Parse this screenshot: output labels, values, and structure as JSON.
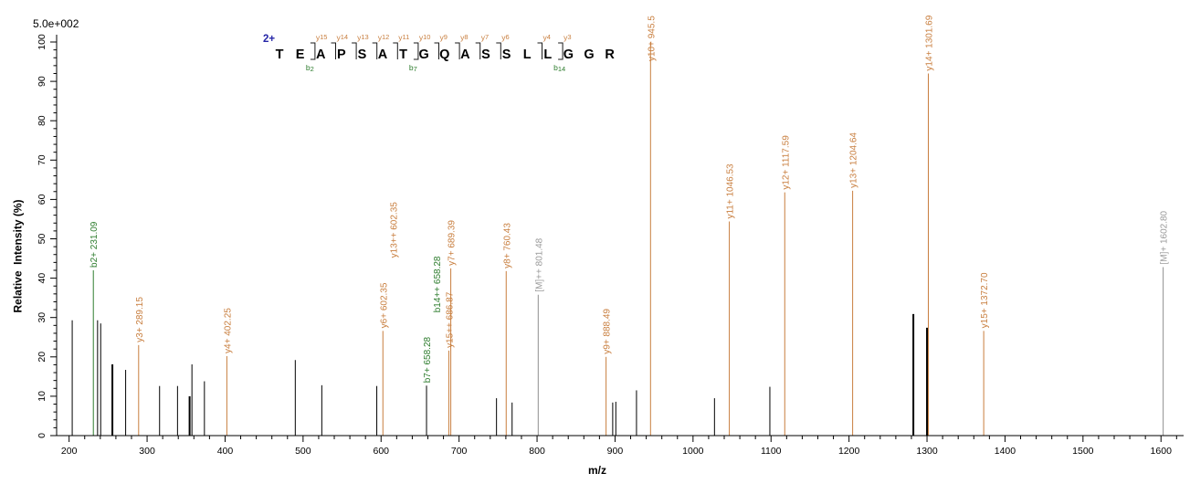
{
  "colors": {
    "y_ion": "#C87E3E",
    "b_ion": "#2E7D2E",
    "precursor_label": "#9A9A9A",
    "precursor_line": "#8F8F8F",
    "charge_label": "#2626A8",
    "unannotated_peak": "#000000",
    "axis": "#000000",
    "cleavage_mark": "#1A1A1A"
  },
  "peptide": {
    "charge": "2+",
    "sequence": "TEAPSATGQASSLLGGR",
    "cleavages": [
      {
        "after": 2,
        "y_label": "y",
        "y_num": "15",
        "b_label": "b",
        "b_num": "2"
      },
      {
        "after": 3,
        "y_label": "y",
        "y_num": "14"
      },
      {
        "after": 4,
        "y_label": "y",
        "y_num": "13"
      },
      {
        "after": 5,
        "y_label": "y",
        "y_num": "12"
      },
      {
        "after": 6,
        "y_label": "y",
        "y_num": "11"
      },
      {
        "after": 7,
        "y_label": "y",
        "y_num": "10",
        "b_label": "b",
        "b_num": "7"
      },
      {
        "after": 8,
        "y_label": "y",
        "y_num": "9"
      },
      {
        "after": 9,
        "y_label": "y",
        "y_num": "8"
      },
      {
        "after": 10,
        "y_label": "y",
        "y_num": "7"
      },
      {
        "after": 11,
        "y_label": "y",
        "y_num": "6"
      },
      {
        "after": 13,
        "y_label": "y",
        "y_num": "4"
      },
      {
        "after": 14,
        "y_label": "y",
        "y_num": "3",
        "b_label": "b",
        "b_num": "14"
      }
    ]
  },
  "chart_data": {
    "type": "bar",
    "subtype": "ms2-stick-spectrum",
    "scale_label": "5.0e+002",
    "xlabel": "m/z",
    "ylabel": "Relative  Intensity (%)",
    "xlim": [
      184,
      1629
    ],
    "ylim": [
      0,
      100
    ],
    "x_major_ticks": [
      200,
      300,
      400,
      500,
      600,
      700,
      800,
      900,
      1000,
      1100,
      1200,
      1300,
      1400,
      1500,
      1600
    ],
    "x_minor_step": 20,
    "y_major_step": 10,
    "y_minor_step": 2,
    "grid": false,
    "annotated_peaks": [
      {
        "mz": 231.09,
        "intensity": 42.0,
        "line": "b",
        "labels": [
          {
            "text": "b2+ 231.09",
            "ion": "b"
          }
        ]
      },
      {
        "mz": 289.15,
        "intensity": 23.0,
        "line": "y",
        "labels": [
          {
            "text": "y3+ 289.15",
            "ion": "y"
          }
        ]
      },
      {
        "mz": 402.25,
        "intensity": 20.2,
        "line": "y",
        "labels": [
          {
            "text": "y4+ 402.25",
            "ion": "y"
          }
        ]
      },
      {
        "mz": 602.35,
        "intensity": 26.6,
        "line": "y",
        "labels": [
          {
            "text": "y6+ 602.35",
            "ion": "y"
          },
          {
            "text": "y13++ 602.35",
            "ion": "y"
          }
        ]
      },
      {
        "mz": 658.28,
        "intensity": 12.7,
        "line": "black",
        "labels": [
          {
            "text": "b7+ 658.28",
            "ion": "b"
          },
          {
            "text": "b14++ 658.28",
            "ion": "b"
          }
        ]
      },
      {
        "mz": 686.87,
        "intensity": 21.6,
        "line": "y",
        "labels": [
          {
            "text": "y15++ 686.87",
            "ion": "y"
          }
        ]
      },
      {
        "mz": 689.39,
        "intensity": 42.5,
        "line": "y",
        "labels": [
          {
            "text": "y7+ 689.39",
            "ion": "y"
          }
        ]
      },
      {
        "mz": 760.43,
        "intensity": 41.8,
        "line": "y",
        "labels": [
          {
            "text": "y8+ 760.43",
            "ion": "y"
          }
        ]
      },
      {
        "mz": 801.48,
        "intensity": 35.8,
        "line": "M",
        "labels": [
          {
            "text": "[M]++ 801.48",
            "ion": "M"
          }
        ]
      },
      {
        "mz": 888.49,
        "intensity": 20.0,
        "line": "y",
        "labels": [
          {
            "text": "y9+ 888.49",
            "ion": "y"
          }
        ]
      },
      {
        "mz": 945.5,
        "intensity": 100.0,
        "line": "y",
        "labels": [
          {
            "text": "y10+ 945.5",
            "ion": "y"
          }
        ]
      },
      {
        "mz": 1046.53,
        "intensity": 54.4,
        "line": "y",
        "labels": [
          {
            "text": "y11+ 1046.53",
            "ion": "y"
          }
        ]
      },
      {
        "mz": 1117.59,
        "intensity": 61.8,
        "line": "y",
        "labels": [
          {
            "text": "y12+ 1117.59",
            "ion": "y"
          }
        ]
      },
      {
        "mz": 1204.64,
        "intensity": 62.2,
        "line": "y",
        "labels": [
          {
            "text": "y13+ 1204.64",
            "ion": "y"
          }
        ]
      },
      {
        "mz": 1301.69,
        "intensity": 92.0,
        "line": "y",
        "labels": [
          {
            "text": "y14+ 1301.69",
            "ion": "y"
          }
        ]
      },
      {
        "mz": 1372.7,
        "intensity": 26.6,
        "line": "y",
        "labels": [
          {
            "text": "y15+ 1372.70",
            "ion": "y"
          }
        ]
      },
      {
        "mz": 1602.8,
        "intensity": 42.8,
        "line": "M",
        "labels": [
          {
            "text": "[M]+ 1602.80",
            "ion": "M"
          }
        ]
      }
    ],
    "unannotated_peaks": [
      [
        204,
        29.3,
        1
      ],
      [
        236.5,
        29.3,
        1
      ],
      [
        240.5,
        28.5,
        1
      ],
      [
        255.5,
        18.1,
        2
      ],
      [
        272.5,
        16.7,
        1
      ],
      [
        316,
        12.6,
        1
      ],
      [
        339,
        12.6,
        1
      ],
      [
        354.5,
        10.0,
        2
      ],
      [
        357.5,
        18.1,
        1
      ],
      [
        373.5,
        13.8,
        1
      ],
      [
        490,
        19.2,
        1
      ],
      [
        524,
        12.8,
        1
      ],
      [
        594.5,
        12.6,
        1
      ],
      [
        748,
        9.5,
        1
      ],
      [
        768,
        8.4,
        1
      ],
      [
        897,
        8.4,
        1
      ],
      [
        901,
        8.6,
        1
      ],
      [
        927.5,
        11.5,
        1
      ],
      [
        1027.5,
        9.5,
        1
      ],
      [
        1098.5,
        12.4,
        1
      ],
      [
        1282.5,
        30.9,
        2
      ],
      [
        1300,
        27.4,
        2
      ]
    ]
  }
}
